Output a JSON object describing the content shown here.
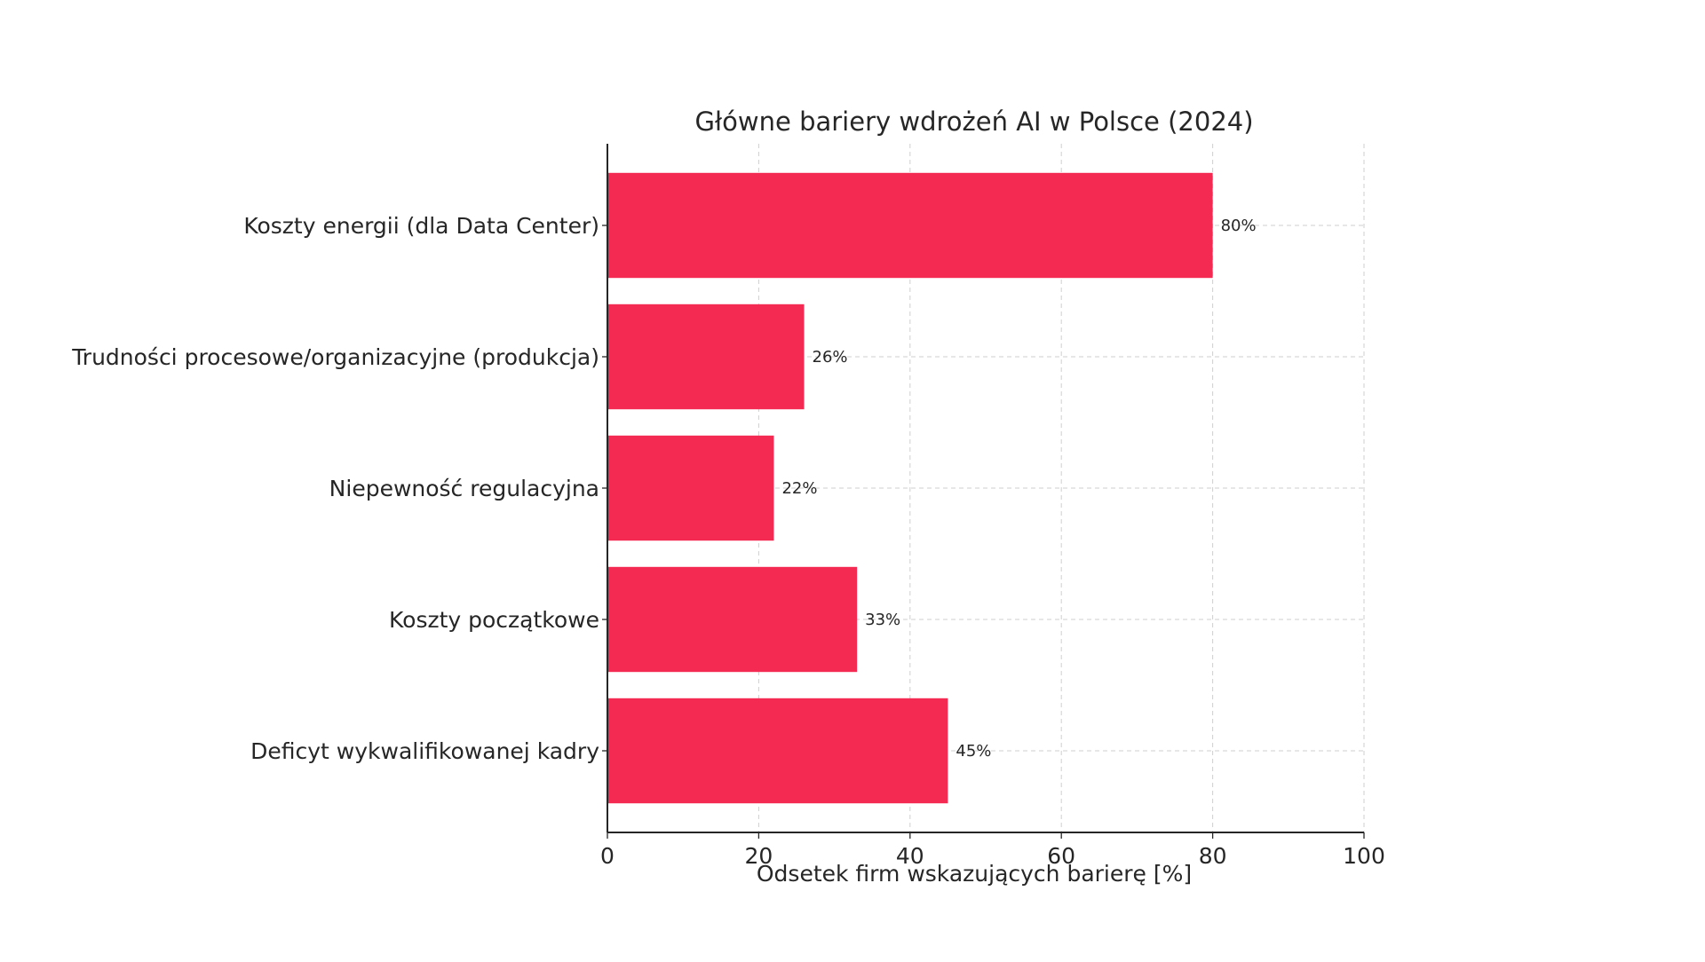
{
  "chart_data": {
    "type": "bar",
    "orientation": "horizontal",
    "title": "Główne bariery wdrożeń AI w Polsce (2024)",
    "xlabel": "Odsetek firm wskazujących barierę [%]",
    "ylabel": "",
    "xlim": [
      0,
      100
    ],
    "xticks": [
      "0",
      "20",
      "40",
      "60",
      "80",
      "100"
    ],
    "grid": true,
    "bar_color": "#f42a53",
    "categories": [
      "Koszty energii (dla Data Center)",
      "Trudności procesowe/organizacyjne (produkcja)",
      "Niepewność regulacyjna",
      "Koszty początkowe",
      "Deficyt wykwalifikowanej kadry"
    ],
    "values": [
      80,
      26,
      22,
      33,
      45
    ],
    "value_labels": [
      "80%",
      "26%",
      "22%",
      "33%",
      "45%"
    ]
  }
}
